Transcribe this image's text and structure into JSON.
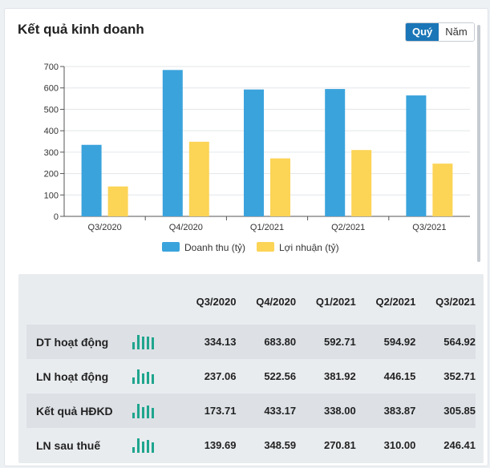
{
  "header": {
    "title": "Kết quả kinh doanh",
    "toggle": [
      {
        "label": "Quý",
        "active": true
      },
      {
        "label": "Năm",
        "active": false
      }
    ]
  },
  "colors": {
    "revenue": "#3aa3dc",
    "profit": "#fcd456",
    "accent": "#1a76b7",
    "sparkline": "#1fa58e"
  },
  "chart_data": {
    "type": "bar",
    "categories": [
      "Q3/2020",
      "Q4/2020",
      "Q1/2021",
      "Q2/2021",
      "Q3/2021"
    ],
    "series": [
      {
        "name": "Doanh thu (tỷ)",
        "values": [
          334.13,
          683.8,
          592.71,
          594.92,
          564.92
        ]
      },
      {
        "name": "Lợi nhuận (tỷ)",
        "values": [
          139.69,
          348.59,
          270.81,
          310.0,
          246.41
        ]
      }
    ],
    "yticks": [
      "0",
      "100",
      "200",
      "300",
      "400",
      "500",
      "600",
      "700"
    ],
    "ylim": [
      0,
      700
    ],
    "grid": true,
    "legend": "bottom-center"
  },
  "table": {
    "columns": [
      "Q3/2020",
      "Q4/2020",
      "Q1/2021",
      "Q2/2021",
      "Q3/2021"
    ],
    "rows": [
      {
        "label": "DT hoạt động",
        "values": [
          "334.13",
          "683.80",
          "592.71",
          "594.92",
          "564.92"
        ],
        "spark": [
          334.13,
          683.8,
          592.71,
          594.92,
          564.92
        ]
      },
      {
        "label": "LN hoạt động",
        "values": [
          "237.06",
          "522.56",
          "381.92",
          "446.15",
          "352.71"
        ],
        "spark": [
          237.06,
          522.56,
          381.92,
          446.15,
          352.71
        ]
      },
      {
        "label": "Kết quả HĐKD",
        "values": [
          "173.71",
          "433.17",
          "338.00",
          "383.87",
          "305.85"
        ],
        "spark": [
          173.71,
          433.17,
          338.0,
          383.87,
          305.85
        ]
      },
      {
        "label": "LN sau thuế",
        "values": [
          "139.69",
          "348.59",
          "270.81",
          "310.00",
          "246.41"
        ],
        "spark": [
          139.69,
          348.59,
          270.81,
          310.0,
          246.41
        ]
      }
    ]
  }
}
